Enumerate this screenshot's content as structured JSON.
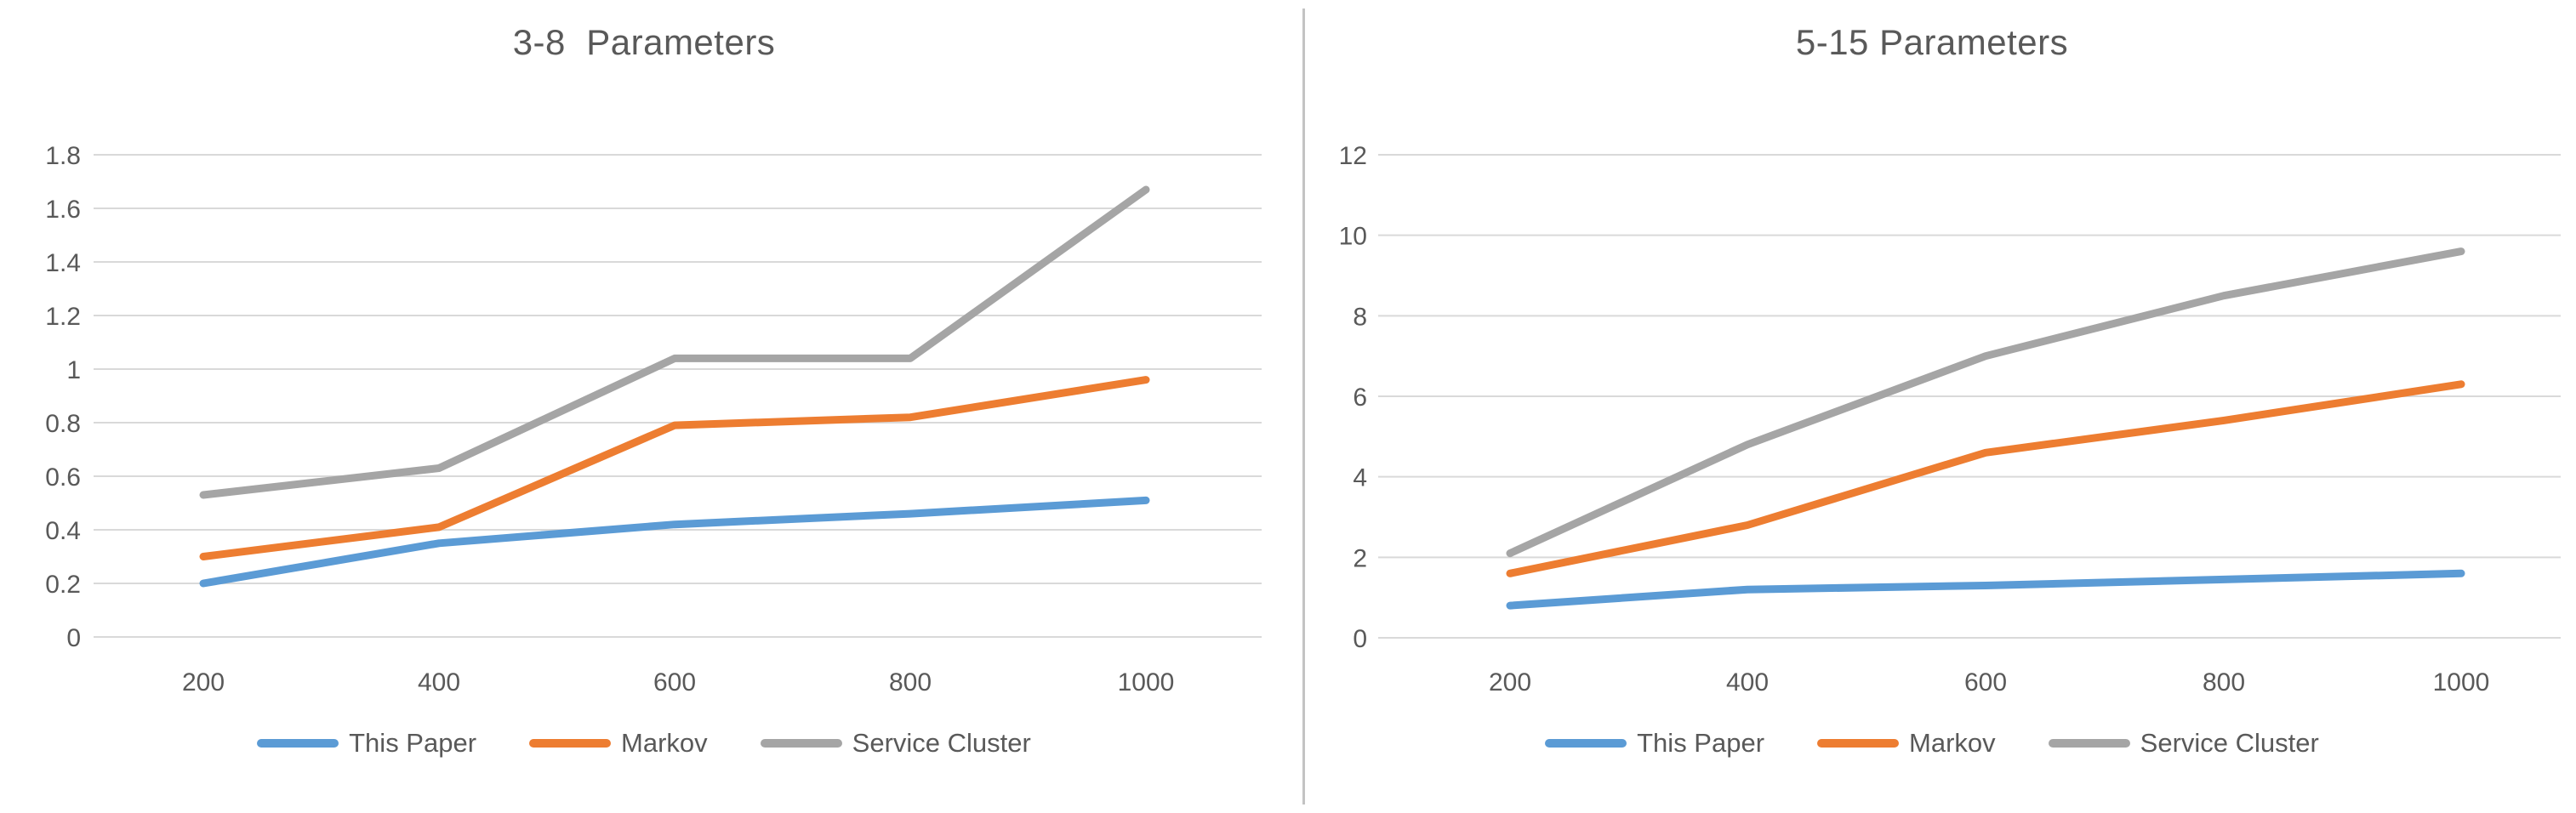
{
  "page": {
    "background": "#ffffff"
  },
  "divider": {
    "color": "#c3c3c3"
  },
  "chart_data": [
    {
      "type": "line",
      "title": "3-8  Parameters",
      "categories": [
        200,
        400,
        600,
        800,
        1000
      ],
      "xticks": [
        "200",
        "400",
        "600",
        "800",
        "1000"
      ],
      "yticks": [
        "0",
        "0.2",
        "0.4",
        "0.6",
        "0.8",
        "1",
        "1.2",
        "1.4",
        "1.6",
        "1.8"
      ],
      "ylim": [
        0,
        1.8
      ],
      "ytick_step": 0.2,
      "grid": true,
      "legend_position": "bottom",
      "series": [
        {
          "name": "This Paper",
          "color": "#5B9BD5",
          "values": [
            0.2,
            0.35,
            0.42,
            0.46,
            0.51
          ]
        },
        {
          "name": "Markov",
          "color": "#ED7D31",
          "values": [
            0.3,
            0.41,
            0.79,
            0.82,
            0.96
          ]
        },
        {
          "name": "Service Cluster",
          "color": "#A5A5A5",
          "values": [
            0.53,
            0.63,
            1.04,
            1.04,
            1.67
          ]
        }
      ],
      "colors": {
        "gridline": "#d9d9d9",
        "tick_label": "#595959",
        "title": "#595959"
      }
    },
    {
      "type": "line",
      "title": "5-15 Parameters",
      "categories": [
        200,
        400,
        600,
        800,
        1000
      ],
      "xticks": [
        "200",
        "400",
        "600",
        "800",
        "1000"
      ],
      "yticks": [
        "0",
        "2",
        "4",
        "6",
        "8",
        "10",
        "12"
      ],
      "ylim": [
        0,
        12
      ],
      "ytick_step": 2,
      "grid": true,
      "legend_position": "bottom",
      "series": [
        {
          "name": "This Paper",
          "color": "#5B9BD5",
          "values": [
            0.8,
            1.2,
            1.3,
            1.45,
            1.6
          ]
        },
        {
          "name": "Markov",
          "color": "#ED7D31",
          "values": [
            1.6,
            2.8,
            4.6,
            5.4,
            6.3
          ]
        },
        {
          "name": "Service Cluster",
          "color": "#A5A5A5",
          "values": [
            2.1,
            4.8,
            7.0,
            8.5,
            9.6
          ]
        }
      ],
      "colors": {
        "gridline": "#d9d9d9",
        "tick_label": "#595959",
        "title": "#595959"
      }
    }
  ]
}
